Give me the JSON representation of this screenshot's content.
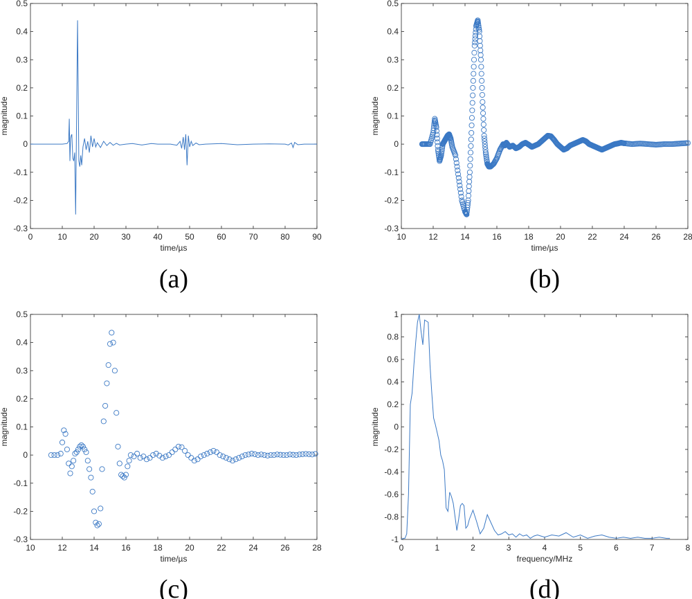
{
  "figure": {
    "style": {
      "line_color": "#3a78c4",
      "axis_color": "#262626"
    }
  },
  "chart_data": [
    {
      "id": "a",
      "panel_label": "(a)",
      "type": "line",
      "xlabel": "time/µs",
      "ylabel": "magnitude",
      "xlim": [
        0,
        90
      ],
      "ylim": [
        -0.3,
        0.5
      ],
      "xticks": [
        "0",
        "10",
        "20",
        "30",
        "40",
        "50",
        "60",
        "70",
        "80",
        "90"
      ],
      "yticks": [
        "-0.3",
        "-0.2",
        "-0.1",
        "0",
        "0.1",
        "0.2",
        "0.3",
        "0.4",
        "0.5"
      ],
      "x": [
        0,
        5,
        10,
        11.5,
        12.0,
        12.2,
        12.4,
        12.6,
        12.8,
        13.0,
        13.3,
        13.6,
        13.9,
        14.2,
        14.5,
        14.8,
        15.0,
        15.2,
        15.5,
        15.8,
        16.1,
        16.5,
        17.0,
        17.5,
        18.0,
        18.5,
        19.0,
        19.5,
        20.0,
        20.5,
        21.0,
        22,
        23,
        24,
        25,
        26,
        27,
        28,
        30,
        32,
        35,
        38,
        40,
        44,
        46,
        47,
        47.5,
        48.0,
        48.4,
        48.8,
        49.2,
        49.6,
        50.0,
        50.5,
        51,
        52,
        53,
        55,
        60,
        65,
        70,
        75,
        80,
        81,
        82,
        82.5,
        83,
        84,
        86,
        90
      ],
      "series": [
        {
          "values": [
            0,
            0,
            0,
            0.002,
            0.01,
            0.09,
            -0.06,
            0.02,
            0.03,
            0.035,
            -0.05,
            -0.06,
            -0.03,
            -0.25,
            0.1,
            0.44,
            0.2,
            -0.06,
            -0.08,
            -0.04,
            -0.075,
            -0.01,
            0.02,
            -0.02,
            0.01,
            -0.03,
            0.03,
            -0.01,
            0.02,
            -0.01,
            0.005,
            -0.012,
            0.01,
            -0.005,
            0.006,
            -0.004,
            0.003,
            -0.003,
            0,
            0.002,
            -0.003,
            0.002,
            0,
            0,
            -0.004,
            0.01,
            -0.015,
            0.025,
            -0.02,
            0.035,
            -0.075,
            0.03,
            -0.01,
            0.01,
            -0.005,
            0.004,
            -0.002,
            0,
            0.002,
            -0.002,
            0,
            0.001,
            0,
            -0.003,
            0.004,
            -0.012,
            0.006,
            -0.002,
            0,
            0
          ]
        }
      ]
    },
    {
      "id": "b",
      "panel_label": "(b)",
      "type": "scatter",
      "marker": "circle",
      "density": "dense",
      "xlabel": "time/µs",
      "ylabel": "magnitude",
      "xlim": [
        10,
        28
      ],
      "ylim": [
        -0.3,
        0.5
      ],
      "xticks": [
        "10",
        "12",
        "14",
        "16",
        "18",
        "20",
        "22",
        "24",
        "26",
        "28"
      ],
      "yticks": [
        "-0.3",
        "-0.2",
        "-0.1",
        "0",
        "0.1",
        "0.2",
        "0.3",
        "0.4",
        "0.5"
      ],
      "x": [
        11.3,
        11.5,
        11.8,
        12.0,
        12.1,
        12.2,
        12.3,
        12.4,
        12.5,
        12.6,
        12.7,
        12.8,
        12.9,
        13.0,
        13.1,
        13.2,
        13.4,
        13.6,
        13.8,
        14.0,
        14.1,
        14.2,
        14.3,
        14.4,
        14.5,
        14.6,
        14.7,
        14.8,
        14.9,
        15.0,
        15.1,
        15.2,
        15.3,
        15.4,
        15.5,
        15.6,
        15.8,
        16.0,
        16.2,
        16.4,
        16.5,
        16.6,
        16.8,
        17.0,
        17.2,
        17.4,
        17.6,
        17.8,
        18.0,
        18.2,
        18.4,
        18.6,
        18.8,
        19.0,
        19.2,
        19.4,
        19.6,
        19.8,
        20.0,
        20.2,
        20.4,
        20.6,
        20.8,
        21.0,
        21.2,
        21.4,
        21.6,
        21.8,
        22.0,
        22.2,
        22.4,
        22.6,
        22.8,
        23.0,
        23.2,
        23.4,
        23.6,
        23.8,
        24.0,
        24.5,
        25.0,
        25.5,
        26.0,
        26.5,
        27.0,
        27.5,
        28.0
      ],
      "series": [
        {
          "values": [
            0,
            0,
            0,
            0.04,
            0.09,
            0.06,
            -0.02,
            -0.06,
            -0.04,
            0,
            0.01,
            0.02,
            0.03,
            0.035,
            0.02,
            -0.01,
            -0.04,
            -0.12,
            -0.2,
            -0.24,
            -0.25,
            -0.2,
            -0.1,
            0.04,
            0.2,
            0.35,
            0.42,
            0.44,
            0.4,
            0.3,
            0.15,
            0.03,
            -0.03,
            -0.07,
            -0.08,
            -0.08,
            -0.07,
            -0.05,
            -0.02,
            0,
            -0.005,
            0.005,
            -0.01,
            -0.005,
            -0.015,
            -0.01,
            0,
            0.005,
            -0.002,
            -0.01,
            -0.005,
            0,
            0.01,
            0.02,
            0.03,
            0.028,
            0.015,
            0,
            -0.01,
            -0.02,
            -0.015,
            -0.005,
            0,
            0.005,
            0.01,
            0.015,
            0.01,
            0,
            -0.005,
            -0.01,
            -0.015,
            -0.02,
            -0.015,
            -0.01,
            -0.005,
            0,
            0.002,
            0.005,
            0.003,
            0,
            0.002,
            0,
            -0.002,
            0,
            0,
            0.002,
            0.004
          ]
        }
      ]
    },
    {
      "id": "c",
      "panel_label": "(c)",
      "type": "scatter",
      "marker": "circle",
      "density": "sparse",
      "xlabel": "time/µs",
      "ylabel": "magnitude",
      "xlim": [
        10,
        28
      ],
      "ylim": [
        -0.3,
        0.5
      ],
      "xticks": [
        "10",
        "12",
        "14",
        "16",
        "18",
        "20",
        "22",
        "24",
        "26",
        "28"
      ],
      "yticks": [
        "-0.3",
        "-0.2",
        "-0.1",
        "0",
        "0.1",
        "0.2",
        "0.3",
        "0.4",
        "0.5"
      ],
      "x": [
        11.3,
        11.5,
        11.7,
        11.9,
        12.0,
        12.1,
        12.2,
        12.3,
        12.4,
        12.5,
        12.6,
        12.7,
        12.8,
        12.9,
        13.0,
        13.1,
        13.2,
        13.3,
        13.4,
        13.5,
        13.6,
        13.7,
        13.8,
        13.9,
        14.0,
        14.1,
        14.2,
        14.3,
        14.4,
        14.5,
        14.6,
        14.7,
        14.8,
        14.9,
        15.0,
        15.1,
        15.2,
        15.3,
        15.4,
        15.5,
        15.6,
        15.7,
        15.8,
        15.9,
        16.0,
        16.1,
        16.2,
        16.3,
        16.5,
        16.7,
        16.9,
        17.1,
        17.3,
        17.5,
        17.7,
        17.9,
        18.1,
        18.3,
        18.5,
        18.7,
        18.9,
        19.1,
        19.3,
        19.5,
        19.7,
        19.9,
        20.1,
        20.3,
        20.5,
        20.7,
        20.9,
        21.1,
        21.3,
        21.5,
        21.7,
        21.9,
        22.1,
        22.3,
        22.5,
        22.7,
        22.9,
        23.1,
        23.3,
        23.5,
        23.7,
        23.9,
        24.1,
        24.3,
        24.5,
        24.7,
        24.9,
        25.1,
        25.3,
        25.5,
        25.7,
        25.9,
        26.1,
        26.3,
        26.5,
        26.7,
        26.9,
        27.1,
        27.3,
        27.5,
        27.7,
        27.9
      ],
      "series": [
        {
          "values": [
            0,
            0,
            0,
            0.005,
            0.045,
            0.088,
            0.075,
            0.02,
            -0.03,
            -0.065,
            -0.04,
            -0.02,
            0.005,
            0.01,
            0.02,
            0.03,
            0.035,
            0.03,
            0.02,
            0.01,
            -0.02,
            -0.05,
            -0.08,
            -0.13,
            -0.2,
            -0.24,
            -0.25,
            -0.245,
            -0.19,
            -0.05,
            0.12,
            0.175,
            0.255,
            0.32,
            0.395,
            0.435,
            0.4,
            0.3,
            0.15,
            0.03,
            -0.03,
            -0.07,
            -0.075,
            -0.08,
            -0.07,
            -0.04,
            -0.02,
            0,
            -0.005,
            0.005,
            -0.01,
            -0.005,
            -0.015,
            -0.01,
            0,
            0.005,
            -0.002,
            -0.01,
            -0.005,
            0,
            0.01,
            0.02,
            0.03,
            0.028,
            0.015,
            0,
            -0.01,
            -0.02,
            -0.015,
            -0.005,
            0,
            0.005,
            0.01,
            0.015,
            0.01,
            0,
            -0.005,
            -0.01,
            -0.015,
            -0.02,
            -0.015,
            -0.01,
            -0.005,
            0,
            0.002,
            0.005,
            0.003,
            0,
            0.002,
            0,
            -0.002,
            0,
            0,
            0.002,
            0.001,
            0,
            0,
            0.002,
            0.001,
            0,
            0.002,
            0.003,
            0.004,
            0.003,
            0.002,
            0.004
          ]
        }
      ]
    },
    {
      "id": "d",
      "panel_label": "(d)",
      "type": "line",
      "xlabel": "frequency/MHz",
      "ylabel": "magnitude",
      "xlim": [
        0,
        8
      ],
      "ylim": [
        -1,
        1
      ],
      "xticks": [
        "0",
        "1",
        "2",
        "3",
        "4",
        "5",
        "6",
        "7",
        "8"
      ],
      "yticks": [
        "-1",
        "-0.8",
        "-0.6",
        "-0.4",
        "-0.2",
        "0",
        "0.2",
        "0.4",
        "0.6",
        "0.8",
        "1"
      ],
      "x": [
        0,
        0.05,
        0.1,
        0.15,
        0.2,
        0.25,
        0.3,
        0.35,
        0.4,
        0.45,
        0.5,
        0.55,
        0.6,
        0.65,
        0.7,
        0.75,
        0.8,
        0.85,
        0.9,
        0.95,
        1.0,
        1.05,
        1.1,
        1.15,
        1.2,
        1.25,
        1.3,
        1.35,
        1.4,
        1.45,
        1.5,
        1.55,
        1.6,
        1.65,
        1.7,
        1.75,
        1.8,
        1.85,
        1.9,
        1.95,
        2.0,
        2.1,
        2.2,
        2.3,
        2.4,
        2.5,
        2.6,
        2.7,
        2.8,
        2.9,
        3.0,
        3.1,
        3.2,
        3.3,
        3.4,
        3.5,
        3.6,
        3.7,
        3.8,
        3.9,
        4.0,
        4.2,
        4.4,
        4.6,
        4.8,
        5.0,
        5.2,
        5.4,
        5.6,
        5.8,
        6.0,
        6.2,
        6.4,
        6.6,
        6.8,
        7.0,
        7.2,
        7.4,
        7.5
      ],
      "series": [
        {
          "values": [
            -1,
            -0.99,
            -0.99,
            -0.95,
            -0.6,
            0.2,
            0.3,
            0.55,
            0.75,
            0.93,
            1.0,
            0.85,
            0.73,
            0.95,
            0.94,
            0.93,
            0.55,
            0.3,
            0.08,
            0.02,
            -0.05,
            -0.12,
            -0.25,
            -0.3,
            -0.38,
            -0.72,
            -0.75,
            -0.58,
            -0.62,
            -0.68,
            -0.8,
            -0.92,
            -0.82,
            -0.7,
            -0.68,
            -0.7,
            -0.9,
            -0.88,
            -0.82,
            -0.78,
            -0.74,
            -0.84,
            -0.95,
            -0.9,
            -0.78,
            -0.85,
            -0.92,
            -0.96,
            -0.95,
            -0.93,
            -0.96,
            -0.95,
            -0.98,
            -0.95,
            -0.97,
            -0.96,
            -0.99,
            -0.97,
            -0.96,
            -0.97,
            -0.98,
            -0.96,
            -0.97,
            -0.94,
            -0.98,
            -0.96,
            -0.99,
            -0.97,
            -0.96,
            -0.98,
            -0.99,
            -0.98,
            -0.99,
            -0.98,
            -0.99,
            -0.99,
            -0.98,
            -0.99,
            -0.99
          ]
        }
      ]
    }
  ]
}
